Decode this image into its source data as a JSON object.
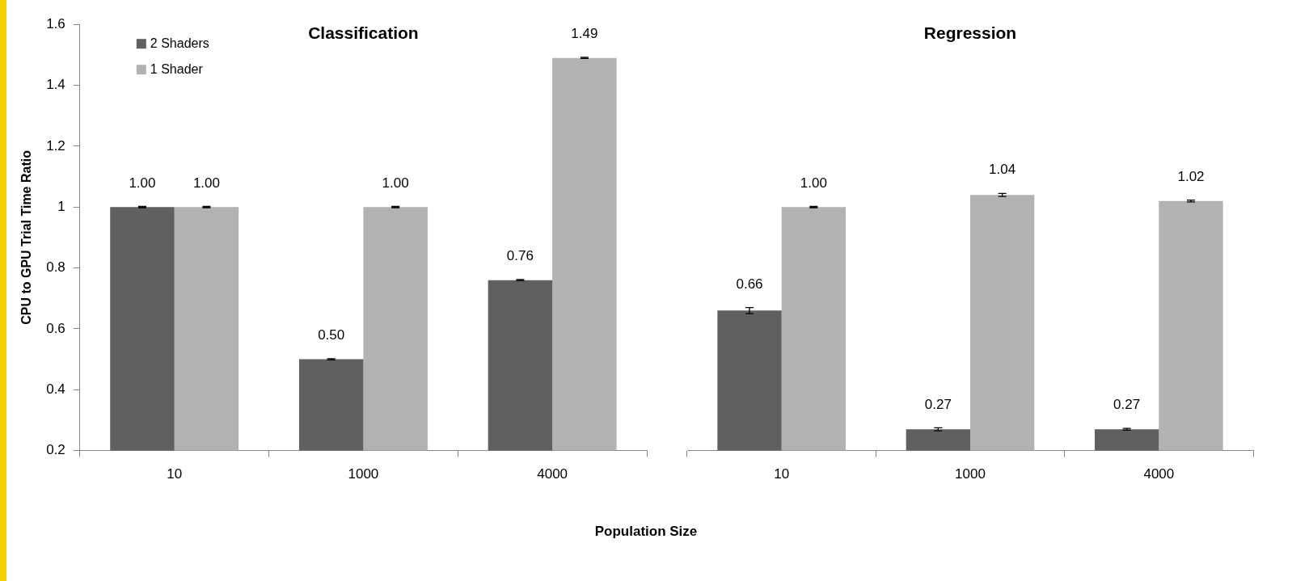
{
  "chart_data": [
    {
      "type": "bar",
      "title": "Classification",
      "ylabel": "CPU to GPU Trial Time Ratio",
      "xlabel": "Population Size",
      "categories": [
        "10",
        "1000",
        "4000"
      ],
      "ylim": [
        0.2,
        1.6
      ],
      "yticks": [
        0.2,
        0.4,
        0.6,
        0.8,
        1,
        1.2,
        1.4,
        1.6
      ],
      "grid": false,
      "legend": "top left",
      "series": [
        {
          "name": "2 Shaders",
          "color": "#606060",
          "values": [
            1.0,
            0.5,
            0.76
          ],
          "value_labels": [
            "1.00",
            "0.50",
            "0.76"
          ],
          "errors": [
            0.002,
            0.002,
            0.002
          ]
        },
        {
          "name": "1 Shader",
          "color": "#b2b2b2",
          "values": [
            1.0,
            1.0,
            1.49
          ],
          "value_labels": [
            "1.00",
            "1.00",
            "1.49"
          ],
          "errors": [
            0.002,
            0.002,
            0.002
          ]
        }
      ]
    },
    {
      "type": "bar",
      "title": "Regression",
      "categories": [
        "10",
        "1000",
        "4000"
      ],
      "ylim": [
        0.2,
        1.6
      ],
      "tick_labels": "x",
      "grid": false,
      "series": [
        {
          "color": "#606060",
          "values": [
            0.66,
            0.27,
            0.27
          ],
          "value_labels": [
            "0.66",
            "0.27",
            "0.27"
          ],
          "errors": [
            0.01,
            0.005,
            0.003
          ]
        },
        {
          "color": "#b2b2b2",
          "values": [
            1.0,
            1.04,
            1.02
          ],
          "value_labels": [
            "1.00",
            "1.04",
            "1.02"
          ],
          "errors": [
            0.002,
            0.005,
            0.003
          ]
        }
      ]
    }
  ]
}
